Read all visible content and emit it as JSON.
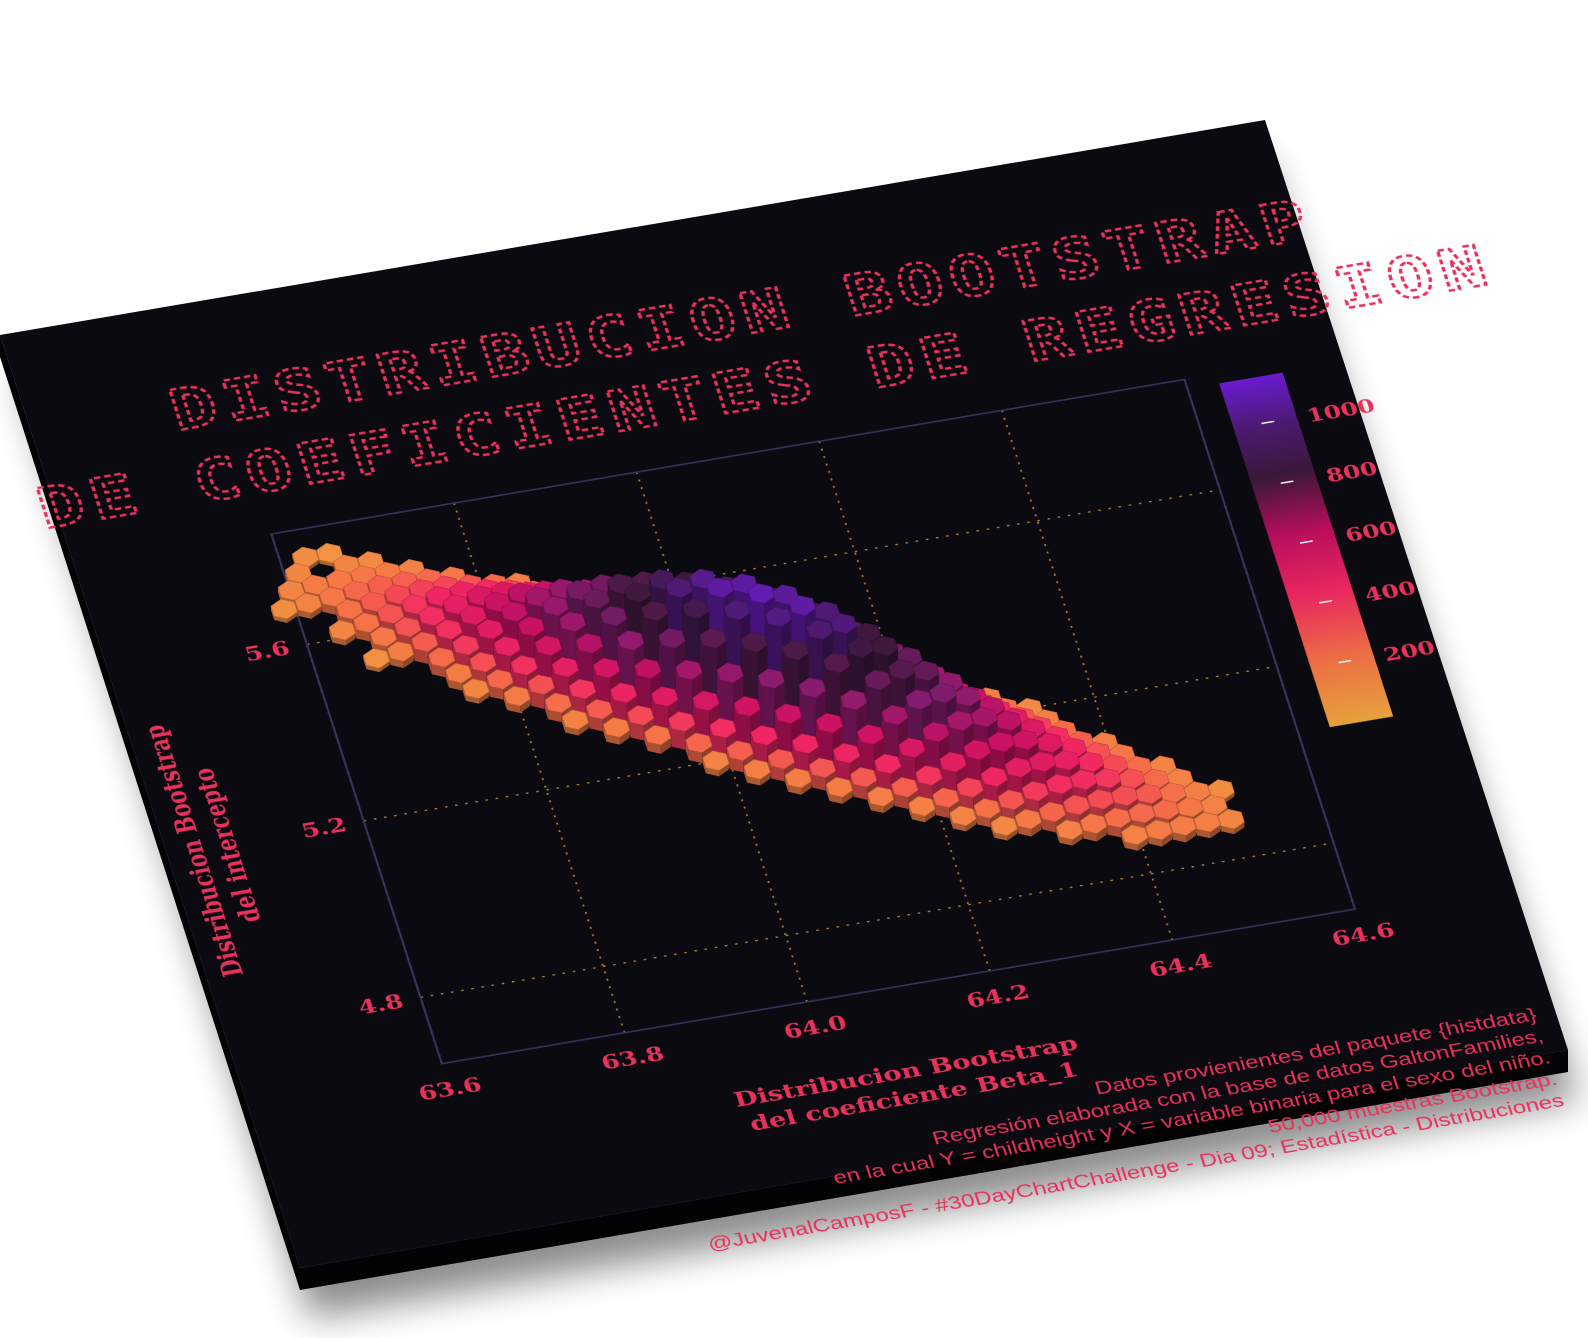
{
  "chart_data": {
    "type": "heatmap",
    "subtype": "3d-hexbin",
    "title_lines": [
      "DISTRIBUCION BOOTSTRAP",
      "DE COEFICIENTES DE REGRESION"
    ],
    "xlabel_lines": [
      "Distribucion Bootstrap",
      "del coeficiente Beta_1"
    ],
    "ylabel_lines": [
      "Distribucion Bootstrap",
      "del intercepto"
    ],
    "xticks": [
      "63.6",
      "63.8",
      "64.0",
      "64.2",
      "64.4",
      "64.6"
    ],
    "yticks": [
      "4.8",
      "5.2",
      "5.6"
    ],
    "x_tick_values": [
      63.6,
      63.8,
      64.0,
      64.2,
      64.4,
      64.6
    ],
    "y_tick_values": [
      4.8,
      5.2,
      5.6
    ],
    "xlim": [
      63.6,
      64.6
    ],
    "ylim": [
      4.65,
      5.85
    ],
    "grid": true,
    "legend": {
      "position": "right",
      "tick_labels": [
        "200",
        "400",
        "600",
        "800",
        "1000"
      ],
      "tick_values": [
        200,
        400,
        600,
        800,
        1000
      ],
      "range": [
        0,
        1150
      ]
    },
    "distribution": {
      "center": [
        64.05,
        5.3
      ],
      "sd": [
        0.2,
        0.2
      ],
      "correlation": -0.92,
      "peak_count": 1100
    },
    "palette": [
      "#e6a13c",
      "#ec7044",
      "#e8265f",
      "#c2105f",
      "#7e1b6a",
      "#3a1838",
      "#6b1bcf"
    ]
  },
  "caption_lines": [
    "Datos provienientes del paquete {histdata}",
    "Regresión elaborada con la base de datos GaltonFamilies,",
    "en la cual Y = childheight y X = variable binaria para el sexo del niño.",
    "50,000 muestras Bootstrap.",
    "@JuvenalCamposF - #30DayChartChallenge - Dia 09; Estadística - Distribuciones"
  ],
  "colors": {
    "board": "#0b0a10",
    "board_edge": "#030305",
    "accent": "#e8315b",
    "grid": "#d59a3e",
    "frame": "#34345a"
  }
}
